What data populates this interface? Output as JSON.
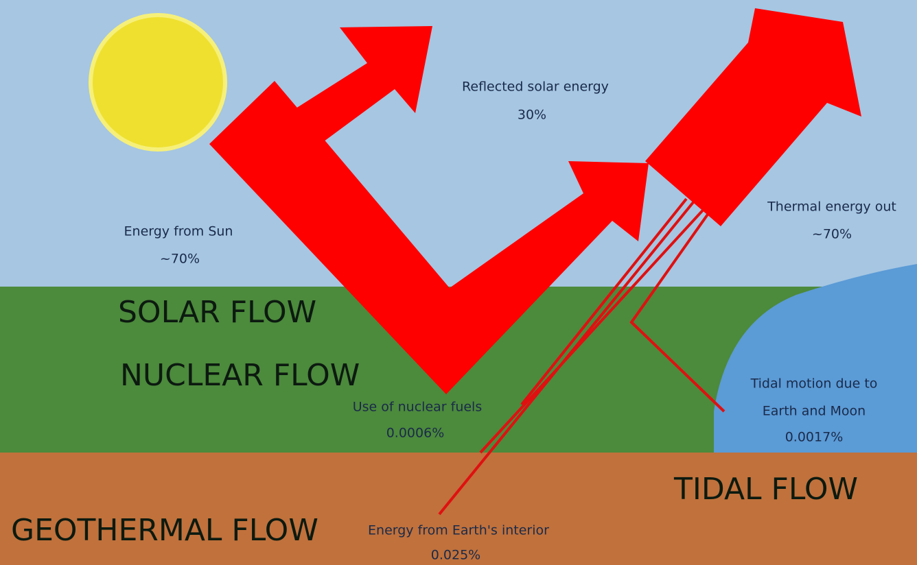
{
  "reflected": {
    "label": "Reflected solar energy",
    "share": "30%"
  },
  "incoming": {
    "label": "Energy from Sun",
    "share": "~70%"
  },
  "thermal": {
    "label": "Thermal energy out",
    "share": "~70%"
  },
  "flows": {
    "solar": "SOLAR FLOW",
    "nuclear": "NUCLEAR FLOW",
    "tidal": "TIDAL FLOW",
    "geothermal": "GEOTHERMAL FLOW"
  },
  "nuclear": {
    "label": "Use of nuclear fuels",
    "share": "0.0006%"
  },
  "tidal": {
    "line1": "Tidal motion due to",
    "line2": "Earth and Moon",
    "share": "0.0017%"
  },
  "geothermal": {
    "label": "Energy from Earth's interior",
    "share": "0.025%"
  }
}
